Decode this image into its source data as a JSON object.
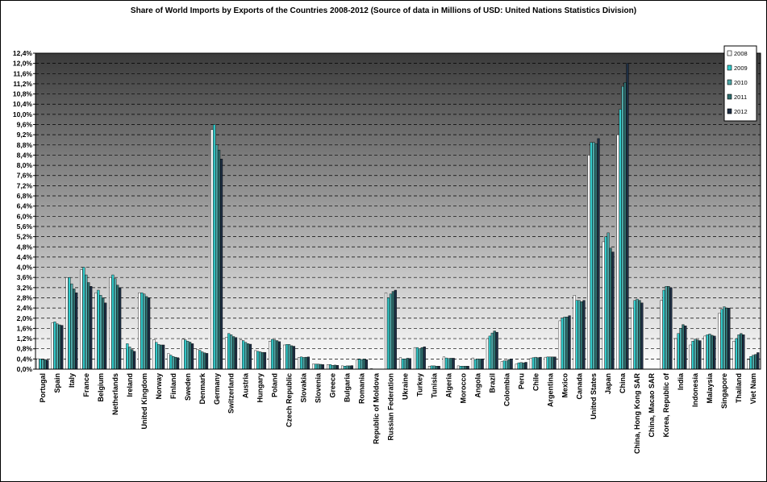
{
  "chart_data": {
    "type": "bar",
    "title": "Share of World Imports by Exports of the Countries 2008-2012 (Source of data in Millions of USD: United Nations Statistics Division)",
    "xlabel": "",
    "ylabel": "",
    "ylim": [
      0,
      12.4
    ],
    "y_tick_step": 0.4,
    "y_tick_format": "percent-comma-1",
    "grid": true,
    "legend_position": "top-right",
    "categories": [
      "Portugal",
      "Spain",
      "Italy",
      "France",
      "Belgium",
      "Netherlands",
      "Ireland",
      "United Kingdom",
      "Norway",
      "Finland",
      "Sweden",
      "Denmark",
      "Germany",
      "Switzerland",
      "Austria",
      "Hungary",
      "Poland",
      "Czech Republic",
      "Slovakia",
      "Slovenia",
      "Greece",
      "Bulgaria",
      "Romania",
      "Republic of Moldova",
      "Russian Federation",
      "Ukraine",
      "Turkey",
      "Tunisia",
      "Algeria",
      "Morocco",
      "Angola",
      "Brazil",
      "Colombia",
      "Peru",
      "Chile",
      "Argentina",
      "Mexico",
      "Canada",
      "United States",
      "Japan",
      "China",
      "China, Hong Kong SAR",
      "China, Macao SAR",
      "Korea, Republic of",
      "India",
      "Indonesia",
      "Malaysia",
      "Singapore",
      "Thailand",
      "Viet Nam"
    ],
    "series": [
      {
        "name": "2008",
        "color": "#ffffff",
        "values": [
          0.41,
          1.81,
          3.6,
          3.9,
          3.0,
          3.6,
          0.8,
          3.0,
          1.16,
          0.61,
          1.18,
          0.78,
          9.4,
          1.25,
          1.15,
          0.73,
          1.1,
          0.95,
          0.46,
          0.2,
          0.18,
          0.13,
          0.38,
          0.02,
          3.0,
          0.45,
          0.85,
          0.12,
          0.48,
          0.13,
          0.44,
          1.2,
          0.3,
          0.2,
          0.42,
          0.47,
          1.9,
          2.9,
          8.4,
          5.0,
          9.2,
          2.4,
          0.01,
          2.7,
          1.2,
          0.95,
          1.3,
          2.2,
          1.1,
          0.38
        ]
      },
      {
        "name": "2009",
        "color": "#33cccc",
        "values": [
          0.4,
          1.86,
          3.6,
          4.0,
          3.1,
          3.7,
          1.0,
          3.0,
          1.05,
          0.55,
          1.15,
          0.74,
          9.6,
          1.4,
          1.12,
          0.7,
          1.17,
          0.97,
          0.48,
          0.2,
          0.18,
          0.12,
          0.39,
          0.01,
          2.8,
          0.4,
          0.85,
          0.13,
          0.44,
          0.12,
          0.38,
          1.3,
          0.33,
          0.25,
          0.45,
          0.48,
          2.0,
          2.7,
          8.9,
          5.2,
          10.2,
          2.7,
          0.01,
          3.1,
          1.4,
          1.1,
          1.35,
          2.35,
          1.2,
          0.5
        ]
      },
      {
        "name": "2010",
        "color": "#4fa8a8",
        "values": [
          0.38,
          1.78,
          3.35,
          3.7,
          2.9,
          3.55,
          0.87,
          2.95,
          0.97,
          0.5,
          1.1,
          0.68,
          8.8,
          1.35,
          1.05,
          0.68,
          1.15,
          0.97,
          0.46,
          0.2,
          0.15,
          0.13,
          0.38,
          0.01,
          2.95,
          0.4,
          0.8,
          0.13,
          0.42,
          0.12,
          0.4,
          1.42,
          0.33,
          0.26,
          0.47,
          0.48,
          2.05,
          2.7,
          8.9,
          5.35,
          11.1,
          2.75,
          0.01,
          3.25,
          1.6,
          1.18,
          1.38,
          2.45,
          1.35,
          0.55
        ]
      },
      {
        "name": "2011",
        "color": "#2f6f6f",
        "values": [
          0.38,
          1.74,
          3.15,
          3.4,
          2.8,
          3.3,
          0.77,
          2.85,
          0.95,
          0.47,
          1.06,
          0.64,
          8.6,
          1.28,
          1.0,
          0.66,
          1.12,
          0.92,
          0.47,
          0.19,
          0.16,
          0.13,
          0.4,
          0.01,
          3.05,
          0.43,
          0.85,
          0.12,
          0.43,
          0.12,
          0.4,
          1.5,
          0.38,
          0.25,
          0.45,
          0.48,
          2.05,
          2.65,
          8.85,
          4.75,
          11.25,
          2.7,
          0.01,
          3.25,
          1.75,
          1.15,
          1.33,
          2.4,
          1.4,
          0.58
        ]
      },
      {
        "name": "2012",
        "color": "#1d2e44",
        "values": [
          0.36,
          1.72,
          3.0,
          3.25,
          2.6,
          3.2,
          0.7,
          2.8,
          0.95,
          0.45,
          1.0,
          0.62,
          8.25,
          1.24,
          0.98,
          0.66,
          1.08,
          0.9,
          0.48,
          0.18,
          0.15,
          0.14,
          0.37,
          0.01,
          3.1,
          0.42,
          0.88,
          0.12,
          0.43,
          0.12,
          0.4,
          1.45,
          0.4,
          0.27,
          0.47,
          0.48,
          2.1,
          2.7,
          9.05,
          4.6,
          12.0,
          2.6,
          0.01,
          3.2,
          1.7,
          1.12,
          1.3,
          2.4,
          1.35,
          0.65
        ]
      }
    ]
  }
}
